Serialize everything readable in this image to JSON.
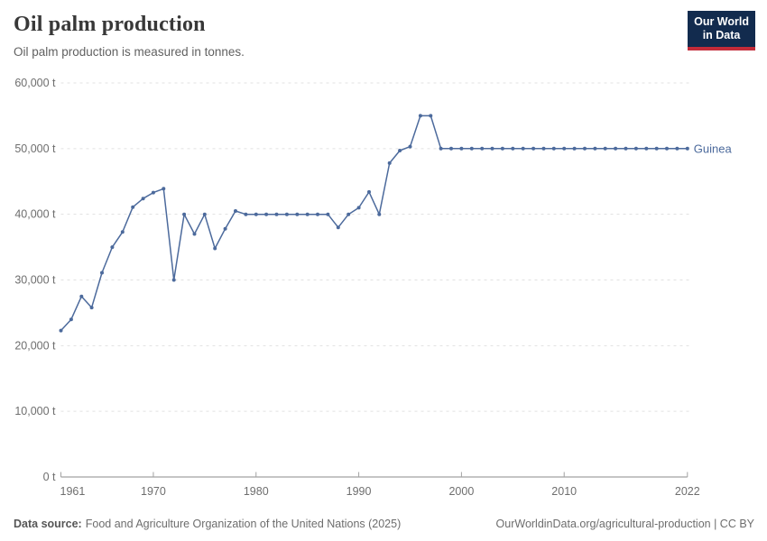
{
  "header": {
    "title": "Oil palm production",
    "subtitle": "Oil palm production is measured in tonnes."
  },
  "logo": {
    "line1": "Our World",
    "line2": "in Data",
    "bg_color": "#122B4E",
    "bar_color": "#C32B39"
  },
  "chart_data": {
    "type": "line",
    "title": "Oil palm production",
    "unit": "t",
    "xlim": [
      1961,
      2022
    ],
    "ylim": [
      0,
      60000
    ],
    "x_ticks": [
      1961,
      1970,
      1980,
      1990,
      2000,
      2010,
      2022
    ],
    "y_ticks": [
      0,
      10000,
      20000,
      30000,
      40000,
      50000,
      60000
    ],
    "grid": true,
    "legend_position": "end-of-line",
    "series": [
      {
        "name": "Guinea",
        "color": "#4C6A9C",
        "x": [
          1961,
          1962,
          1963,
          1964,
          1965,
          1966,
          1967,
          1968,
          1969,
          1970,
          1971,
          1972,
          1973,
          1974,
          1975,
          1976,
          1977,
          1978,
          1979,
          1980,
          1981,
          1982,
          1983,
          1984,
          1985,
          1986,
          1987,
          1988,
          1989,
          1990,
          1991,
          1992,
          1993,
          1994,
          1995,
          1996,
          1997,
          1998,
          1999,
          2000,
          2001,
          2002,
          2003,
          2004,
          2005,
          2006,
          2007,
          2008,
          2009,
          2010,
          2011,
          2012,
          2013,
          2014,
          2015,
          2016,
          2017,
          2018,
          2019,
          2020,
          2021,
          2022
        ],
        "values": [
          22300,
          24000,
          27500,
          25800,
          31100,
          35000,
          37300,
          41100,
          42400,
          43300,
          43900,
          30000,
          40000,
          37000,
          40000,
          34800,
          37800,
          40500,
          40000,
          40000,
          40000,
          40000,
          40000,
          40000,
          40000,
          40000,
          40000,
          38000,
          40000,
          41000,
          43400,
          40000,
          47800,
          49700,
          50300,
          55000,
          55000,
          50000,
          50000,
          50000,
          50000,
          50000,
          50000,
          50000,
          50000,
          50000,
          50000,
          50000,
          50000,
          50000,
          50000,
          50000,
          50000,
          50000,
          50000,
          50000,
          50000,
          50000,
          50000,
          50000,
          50000,
          50000
        ]
      }
    ]
  },
  "footer": {
    "source_label": "Data source:",
    "source_text": "Food and Agriculture Organization of the United Nations (2025)",
    "right_text": "OurWorldinData.org/agricultural-production | CC BY"
  }
}
